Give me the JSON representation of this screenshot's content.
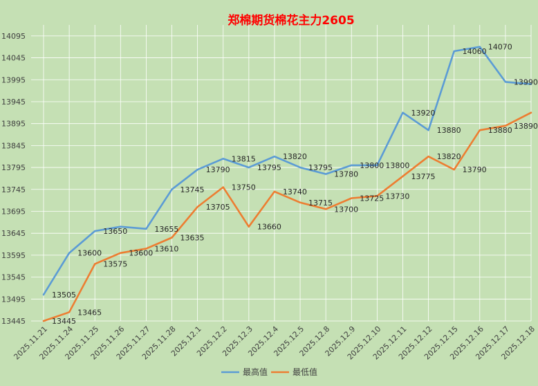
{
  "chart_data": {
    "type": "line",
    "title": "郑棉期货棉花主力2605",
    "categories": [
      "2025.11.21",
      "2025.11.24",
      "2025.11.25",
      "2025.11.26",
      "2025.11.27",
      "2025.11.28",
      "2025.12.1",
      "2025.12.2",
      "2025.12.3",
      "2025.12.4",
      "2025.12.5",
      "2025.12.8",
      "2025.12.9",
      "2025.12.10",
      "2025.12.11",
      "2025.12.12",
      "2025.12.15",
      "2025.12.16",
      "2025.12.17",
      "2025.12.18"
    ],
    "series": [
      {
        "name": "最高值",
        "color": "#5b9bd5",
        "values": [
          13505,
          13600,
          13650,
          13660,
          13655,
          13745,
          13790,
          13815,
          13795,
          13820,
          13795,
          13780,
          13800,
          13800,
          13920,
          13880,
          14060,
          14070,
          13990,
          13985
        ]
      },
      {
        "name": "最低值",
        "color": "#ed7d31",
        "values": [
          13445,
          13465,
          13575,
          13600,
          13610,
          13635,
          13705,
          13750,
          13660,
          13740,
          13715,
          13700,
          13725,
          13730,
          13775,
          13820,
          13790,
          13880,
          13890,
          13920
        ]
      }
    ],
    "data_labels": {
      "high": [
        "13505",
        "13600",
        "13650",
        "",
        "13655",
        "13745",
        "13790",
        "13815",
        "13795",
        "13820",
        "13795",
        "13780",
        "13800",
        "13800",
        "13920",
        "13880",
        "14060",
        "14070",
        "13990",
        "13985"
      ],
      "low": [
        "13445",
        "13465",
        "13575",
        "13600",
        "13610",
        "13635",
        "13705",
        "13750",
        "13660",
        "13740",
        "13715",
        "13700",
        "13725",
        "13730",
        "13775",
        "13820",
        "13790",
        "13880",
        "13890",
        "13920"
      ]
    },
    "yticks": [
      "13445",
      "13495",
      "13545",
      "13595",
      "13645",
      "13695",
      "13745",
      "13795",
      "13845",
      "13895",
      "13945",
      "13995",
      "14045",
      "14095"
    ],
    "ylim": [
      13445,
      14120
    ],
    "xlabel": "",
    "ylabel": "",
    "grid": true,
    "legend_position": "bottom"
  }
}
